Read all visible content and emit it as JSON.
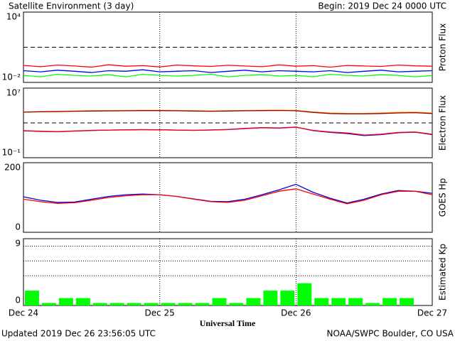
{
  "header": {
    "title": "Satellite Environment (3 day)",
    "begin": "Begin:  2019 Dec 24 0000 UTC"
  },
  "footer": {
    "updated": "Updated 2019 Dec 26 23:56:05 UTC",
    "credit": "NOAA/SWPC Boulder, CO USA"
  },
  "axis": {
    "label": "Universal Time",
    "xticks": [
      "Dec 24",
      "Dec 25",
      "Dec 26",
      "Dec 27"
    ]
  },
  "chart_data": [
    {
      "type": "line",
      "ylabel": "Proton Flux",
      "log": true,
      "ylim": [
        0.01,
        10000
      ],
      "yticks": [
        {
          "value": 10000,
          "label": "10⁴"
        },
        {
          "value": 0.01,
          "label": "10⁻²"
        }
      ],
      "threshold": 10,
      "series": [
        {
          "color": "#ff0000",
          "values": [
            0.28,
            0.22,
            0.3,
            0.25,
            0.2,
            0.32,
            0.24,
            0.27,
            0.21,
            0.3,
            0.26,
            0.23,
            0.29,
            0.25,
            0.22,
            0.31,
            0.24,
            0.27,
            0.2,
            0.28,
            0.25,
            0.23,
            0.3,
            0.26,
            0.24
          ]
        },
        {
          "color": "#0000ff",
          "values": [
            0.1,
            0.08,
            0.11,
            0.09,
            0.07,
            0.1,
            0.09,
            0.12,
            0.08,
            0.09,
            0.1,
            0.07,
            0.09,
            0.11,
            0.08,
            0.1,
            0.09,
            0.08,
            0.1,
            0.07,
            0.09,
            0.11,
            0.08,
            0.09,
            0.1
          ]
        },
        {
          "color": "#00ff00",
          "values": [
            0.04,
            0.03,
            0.05,
            0.04,
            0.035,
            0.045,
            0.03,
            0.05,
            0.04,
            0.035,
            0.04,
            0.05,
            0.03,
            0.04,
            0.045,
            0.035,
            0.04,
            0.03,
            0.05,
            0.04,
            0.035,
            0.045,
            0.04,
            0.03,
            0.04
          ]
        }
      ]
    },
    {
      "type": "line",
      "ylabel": "Electron Flux",
      "log": true,
      "ylim": [
        0.1,
        10000000
      ],
      "yticks": [
        {
          "value": 10000000,
          "label": "10⁷"
        },
        {
          "value": 0.1,
          "label": "10⁻¹"
        }
      ],
      "threshold": 1000,
      "series": [
        {
          "color": "#ffa500",
          "values": [
            18000,
            20000,
            22000,
            23000,
            25000,
            26000,
            27000,
            28000,
            28000,
            27000,
            25000,
            24000,
            25000,
            27000,
            28000,
            29000,
            28000,
            18000,
            14000,
            12000,
            12000,
            14000,
            16000,
            17000,
            14000
          ]
        },
        {
          "color": "#a00000",
          "values": [
            17000,
            19000,
            20000,
            22000,
            23000,
            24000,
            25000,
            26000,
            26000,
            25000,
            23000,
            22000,
            23000,
            25000,
            26000,
            27000,
            25000,
            16000,
            12000,
            11000,
            11000,
            12000,
            14000,
            15000,
            12000
          ]
        },
        {
          "color": "#0000ff",
          "values": [
            125,
            105,
            95,
            115,
            135,
            150,
            155,
            165,
            160,
            150,
            140,
            155,
            175,
            230,
            290,
            260,
            330,
            130,
            80,
            60,
            35,
            45,
            75,
            85,
            45
          ]
        },
        {
          "color": "#ff0000",
          "values": [
            130,
            110,
            100,
            120,
            140,
            150,
            160,
            170,
            160,
            150,
            140,
            150,
            170,
            220,
            280,
            250,
            320,
            140,
            90,
            70,
            40,
            50,
            80,
            90,
            50
          ]
        }
      ]
    },
    {
      "type": "line",
      "ylabel": "GOES Hp",
      "log": false,
      "ylim": [
        0,
        200
      ],
      "yticks": [
        200,
        0
      ],
      "series": [
        {
          "color": "#0000dd",
          "values": [
            102,
            92,
            86,
            87,
            95,
            103,
            108,
            110,
            108,
            103,
            96,
            89,
            88,
            95,
            108,
            122,
            138,
            115,
            98,
            84,
            95,
            110,
            120,
            118,
            112
          ]
        },
        {
          "color": "#ff0000",
          "values": [
            95,
            88,
            83,
            85,
            92,
            100,
            105,
            108,
            108,
            103,
            95,
            88,
            86,
            92,
            105,
            118,
            125,
            110,
            95,
            82,
            92,
            108,
            118,
            118,
            108
          ]
        }
      ]
    },
    {
      "type": "bar",
      "ylabel": "Estimated Kp",
      "log": false,
      "ylim": [
        0,
        9
      ],
      "yticks": [
        9,
        0
      ],
      "gridlines": [
        4,
        6,
        8
      ],
      "color": "#00ff00",
      "values": [
        2,
        0.33,
        1,
        1,
        0.33,
        0.33,
        0.33,
        0.33,
        0.33,
        0.33,
        0.33,
        1,
        0.33,
        1,
        2,
        2,
        3,
        1,
        1,
        1,
        0.33,
        1,
        1,
        null
      ]
    }
  ]
}
